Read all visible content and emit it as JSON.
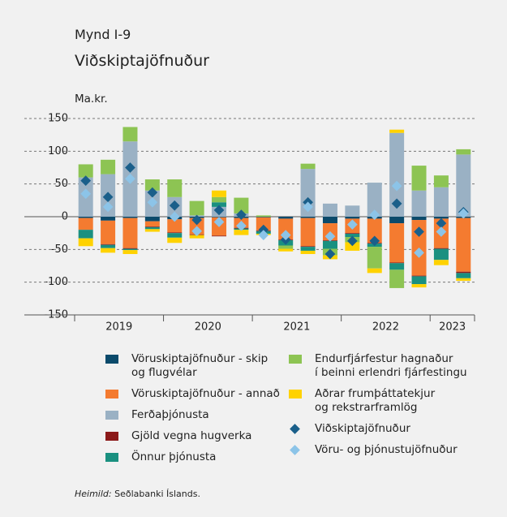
{
  "chart_data": {
    "type": "bar",
    "figure_label": "Mynd I-9",
    "title": "Viðskiptajöfnuður",
    "y_label": "Ma.kr.",
    "source_label": "Heimild:",
    "source_text": "Seðlabanki Íslands.",
    "categories": [
      null,
      null,
      null,
      null,
      null,
      null,
      null,
      null,
      null,
      null,
      null,
      null,
      null,
      null,
      null,
      null,
      null,
      null
    ],
    "groups": [
      {
        "label": "2019",
        "size": 4
      },
      {
        "label": "2020",
        "size": 4
      },
      {
        "label": "2021",
        "size": 4
      },
      {
        "label": "2022",
        "size": 4
      },
      {
        "label": "2023",
        "size": 2
      }
    ],
    "ylim": [
      -150,
      150
    ],
    "yticks": [
      -150,
      -100,
      -50,
      0,
      50,
      100,
      150
    ],
    "grid": true,
    "series": [
      {
        "name": "Vöruskiptajöfnuður - skip\nog flugvélar",
        "kind": "bar",
        "color": "#0b4a6b",
        "values": [
          -2,
          -6,
          -2,
          -7,
          -4,
          -2,
          -1,
          -2,
          -1,
          -3,
          -2,
          -10,
          -3,
          -3,
          -10,
          -5,
          -3,
          -2
        ]
      },
      {
        "name": "Vöruskiptajöfnuður - annað",
        "kind": "bar",
        "color": "#f47b30",
        "values": [
          -18,
          -36,
          -46,
          -8,
          -20,
          -25,
          -28,
          -15,
          -20,
          -32,
          -43,
          -26,
          -22,
          -37,
          -60,
          -85,
          -45,
          -82
        ]
      },
      {
        "name": "Ferðaþjónusta",
        "kind": "bar",
        "color": "#9ab1c4",
        "values": [
          60,
          65,
          115,
          40,
          30,
          2,
          15,
          5,
          0,
          0,
          73,
          20,
          17,
          52,
          128,
          40,
          45,
          95
        ]
      },
      {
        "name": "Gjöld vegna hugverka",
        "kind": "bar",
        "color": "#8b1a1a",
        "values": [
          0,
          -1,
          -1,
          -1,
          -1,
          -1,
          -1,
          -1,
          -1,
          -1,
          -1,
          -1,
          -1,
          -1,
          -1,
          -1,
          -1,
          -2
        ]
      },
      {
        "name": "Önnur þjónusta",
        "kind": "bar",
        "color": "#1a9080",
        "values": [
          -13,
          -5,
          -2,
          -3,
          -7,
          0,
          7,
          -2,
          -4,
          -8,
          -6,
          -12,
          -5,
          -5,
          -10,
          -12,
          -17,
          -8
        ]
      },
      {
        "name": "Endurfjárfestur hagnaður\ní beinni erlendri fjárfestingu",
        "kind": "bar",
        "color": "#8dc453",
        "values": [
          20,
          22,
          22,
          17,
          27,
          22,
          8,
          24,
          2,
          -5,
          8,
          -10,
          -8,
          -33,
          -28,
          38,
          18,
          8
        ]
      },
      {
        "name": "Aðrar frumþáttatekjur\nog rekstrarframlög",
        "kind": "bar",
        "color": "#ffd200",
        "values": [
          -12,
          -7,
          -6,
          -4,
          -8,
          -5,
          10,
          -8,
          -2,
          -4,
          -5,
          -6,
          -13,
          -7,
          5,
          -5,
          -8,
          -4
        ]
      },
      {
        "name": "Viðskiptajöfnuður",
        "kind": "marker",
        "color": "#1a5f8a",
        "values": [
          55,
          30,
          75,
          37,
          17,
          -5,
          10,
          3,
          -20,
          -35,
          22,
          -57,
          -37,
          -37,
          20,
          -23,
          -10,
          7
        ]
      },
      {
        "name": "Vöru- og þjónustujöfnuður",
        "kind": "marker",
        "color": "#8cc4e8",
        "values": [
          35,
          15,
          58,
          22,
          0,
          -22,
          -8,
          -14,
          -28,
          -28,
          15,
          -30,
          -12,
          3,
          47,
          -55,
          -23,
          5
        ]
      }
    ]
  }
}
